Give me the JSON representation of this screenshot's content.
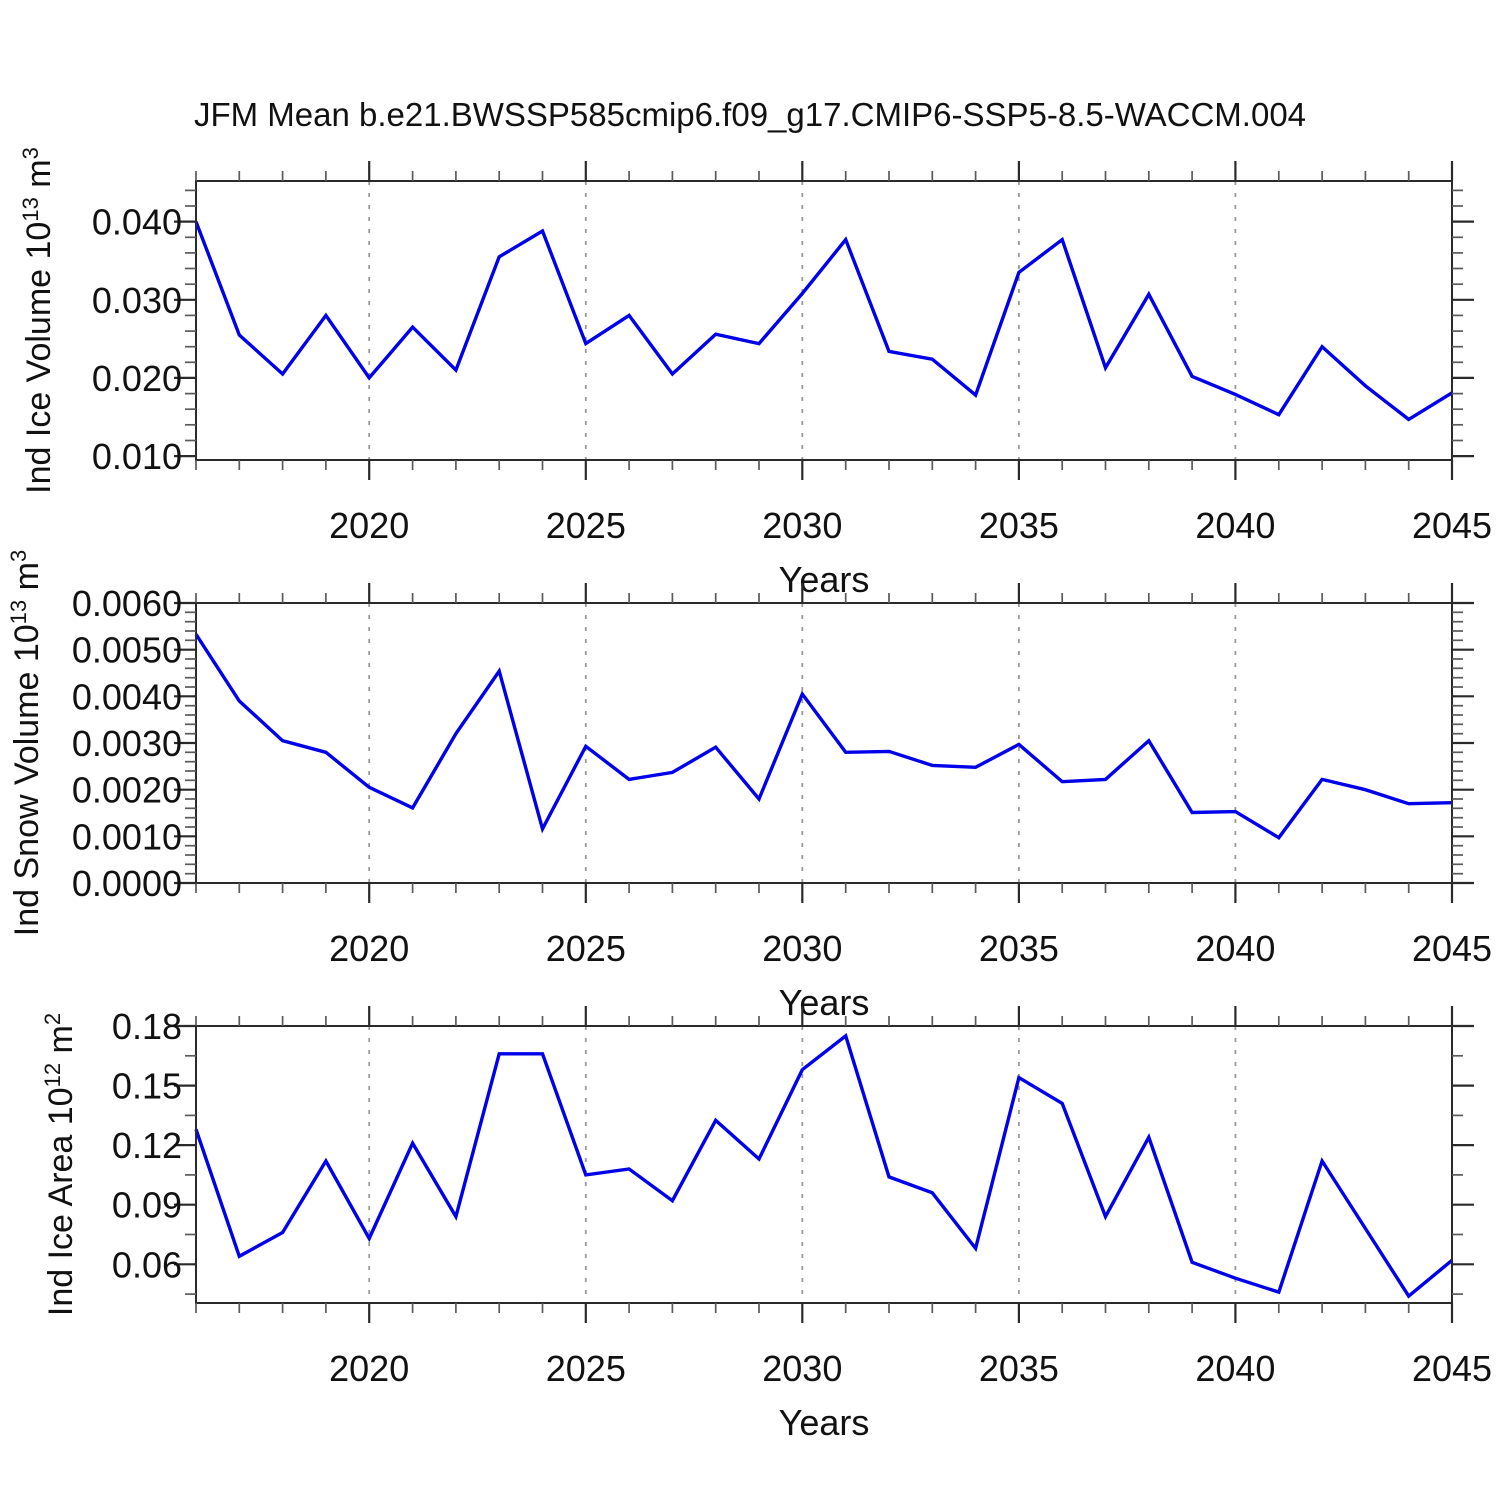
{
  "title": "JFM Mean b.e21.BWSSP585cmip6.f09_g17.CMIP6-SSP5-8.5-WACCM.004",
  "colors": {
    "series": "#0000EB",
    "grid": "#999999",
    "axis": "#2a2a2a",
    "text": "#111111",
    "background": "#ffffff"
  },
  "chart_data": {
    "type": "line",
    "title": "JFM Mean b.e21.BWSSP585cmip6.f09_g17.CMIP6-SSP5-8.5-WACCM.004",
    "x_label": "Years",
    "x": [
      2016,
      2017,
      2018,
      2019,
      2020,
      2021,
      2022,
      2023,
      2024,
      2025,
      2026,
      2027,
      2028,
      2029,
      2030,
      2031,
      2032,
      2033,
      2034,
      2035,
      2036,
      2037,
      2038,
      2039,
      2040,
      2041,
      2042,
      2043,
      2044,
      2045
    ],
    "xlim": [
      2016,
      2045
    ],
    "x_ticks": [
      2020,
      2025,
      2030,
      2035,
      2040,
      2045
    ],
    "x_tick_labels": [
      "2020",
      "2025",
      "2030",
      "2035",
      "2040",
      "2045"
    ],
    "x_minor_step": 1,
    "grid_x": [
      2020,
      2025,
      2030,
      2035,
      2040
    ],
    "grid_style": "dashed",
    "legend": "none",
    "panels": [
      {
        "name": "ind-ice-volume",
        "ylabel": "Ind Ice Volume 10^13 m^3",
        "ylabel_parts": [
          {
            "t": "Ind Ice Volume 10"
          },
          {
            "t": "13",
            "sup": true
          },
          {
            "t": " m"
          },
          {
            "t": "3",
            "sup": true
          }
        ],
        "ylabel_x": 50,
        "ylim": [
          0.0095,
          0.0452
        ],
        "yticks": [
          [
            0.01,
            "0.010"
          ],
          [
            0.02,
            "0.020"
          ],
          [
            0.03,
            "0.030"
          ],
          [
            0.04,
            "0.040"
          ]
        ],
        "y_minor_step": 0.002,
        "values": [
          0.04,
          0.0255,
          0.0205,
          0.028,
          0.02,
          0.0265,
          0.021,
          0.0355,
          0.0388,
          0.0244,
          0.028,
          0.0205,
          0.0256,
          0.0244,
          0.0308,
          0.0377,
          0.0234,
          0.0224,
          0.0178,
          0.0335,
          0.0377,
          0.0213,
          0.0307,
          0.0202,
          0.0179,
          0.0153,
          0.024,
          0.019,
          0.0147,
          0.0181
        ]
      },
      {
        "name": "ind-snow-volume",
        "ylabel": "Ind Snow Volume 10^13 m^3",
        "ylabel_parts": [
          {
            "t": "Ind Snow Volume 10"
          },
          {
            "t": "13",
            "sup": true
          },
          {
            "t": " m"
          },
          {
            "t": "3",
            "sup": true
          }
        ],
        "ylabel_x": 38,
        "ylim": [
          0.0,
          0.006
        ],
        "yticks": [
          [
            0.0,
            "0.0000"
          ],
          [
            0.001,
            "0.0010"
          ],
          [
            0.002,
            "0.0020"
          ],
          [
            0.003,
            "0.0030"
          ],
          [
            0.004,
            "0.0040"
          ],
          [
            0.005,
            "0.0050"
          ],
          [
            0.006,
            "0.0060"
          ]
        ],
        "y_minor_step": 0.0002,
        "values": [
          0.00533,
          0.0039,
          0.00305,
          0.0028,
          0.00205,
          0.00161,
          0.0032,
          0.00454,
          0.00116,
          0.00293,
          0.00222,
          0.00237,
          0.00291,
          0.0018,
          0.00405,
          0.0028,
          0.00282,
          0.00252,
          0.00248,
          0.00297,
          0.00217,
          0.00222,
          0.00305,
          0.00151,
          0.00153,
          0.00097,
          0.00222,
          0.002,
          0.0017,
          0.00172
        ]
      },
      {
        "name": "ind-ice-area",
        "ylabel": "Ind Ice Area 10^12 m^2",
        "ylabel_parts": [
          {
            "t": "Ind Ice Area 10"
          },
          {
            "t": "12",
            "sup": true
          },
          {
            "t": " m"
          },
          {
            "t": "2",
            "sup": true
          }
        ],
        "ylabel_x": 72,
        "ylim": [
          0.0405,
          0.18
        ],
        "yticks": [
          [
            0.06,
            "0.06"
          ],
          [
            0.09,
            "0.09"
          ],
          [
            0.12,
            "0.12"
          ],
          [
            0.15,
            "0.15"
          ],
          [
            0.18,
            "0.18"
          ]
        ],
        "y_minor_step": 0.015,
        "values": [
          0.128,
          0.064,
          0.076,
          0.112,
          0.073,
          0.121,
          0.084,
          0.166,
          0.166,
          0.105,
          0.108,
          0.092,
          0.1325,
          0.113,
          0.158,
          0.175,
          0.104,
          0.096,
          0.068,
          0.154,
          0.141,
          0.084,
          0.124,
          0.061,
          0.053,
          0.046,
          0.112,
          0.078,
          0.044,
          0.062
        ]
      }
    ]
  }
}
